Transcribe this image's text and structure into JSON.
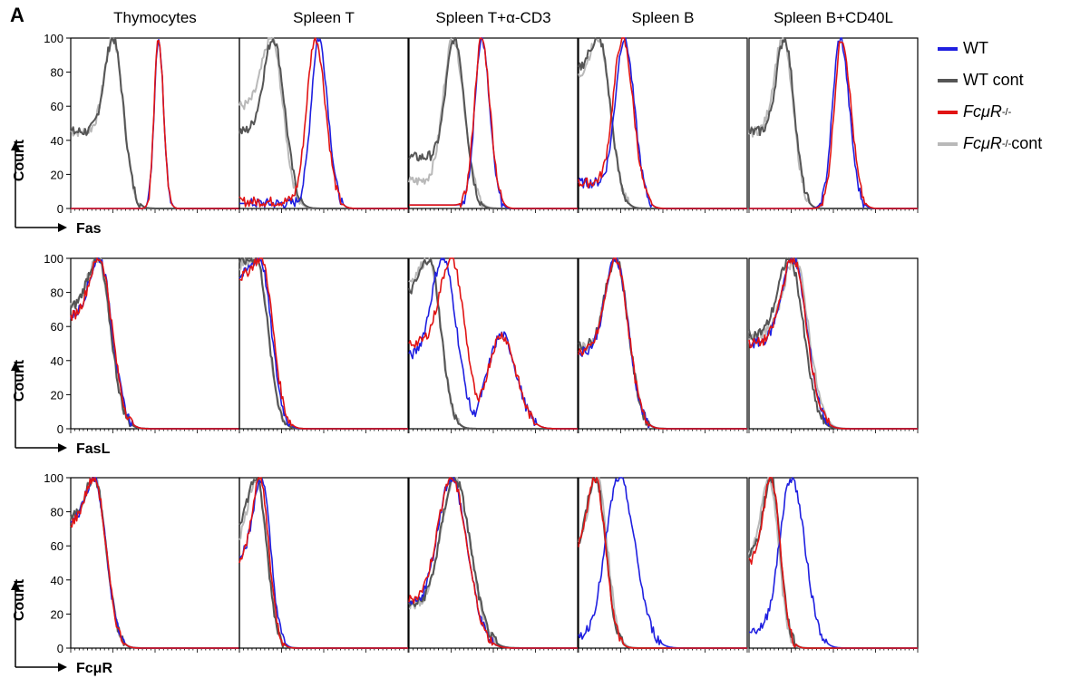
{
  "figure": {
    "panel_letter": "A",
    "columns": [
      "Thymocytes",
      "Spleen T",
      "Spleen T+α-CD3",
      "Spleen B",
      "Spleen B+CD40L"
    ],
    "y_label": "Count",
    "y_ticks": [
      "0",
      "20",
      "40",
      "60",
      "80",
      "100"
    ],
    "legend": [
      {
        "label": "WT",
        "sup": "",
        "italic": false,
        "color": "#1f1fe0"
      },
      {
        "label": "WT cont",
        "sup": "",
        "italic": false,
        "color": "#555555"
      },
      {
        "label": "FcμR",
        "sup": "-/-",
        "italic": true,
        "color": "#e11414"
      },
      {
        "label": "FcμR",
        "sup": "-/-",
        "italic": true,
        "suffix": " cont",
        "color": "#b9b9b9"
      }
    ],
    "colors": {
      "WT": "#1f1fe0",
      "WT cont": "#555555",
      "FcuR-/-": "#e11414",
      "FcuR-/- cont": "#b9b9b9"
    }
  },
  "chart_data": [
    {
      "type": "line",
      "row_label": "Fas",
      "ylabel": "Count",
      "ylim": [
        0,
        100
      ],
      "xlim": [
        0,
        1
      ],
      "histograms": [
        {
          "column": "Thymocytes",
          "series": [
            {
              "name": "WT",
              "peak": 0.52,
              "width": 0.045,
              "left_floor": 0,
              "shoulder": 0
            },
            {
              "name": "WT cont",
              "peak": 0.25,
              "width": 0.09,
              "left_floor": 45,
              "shoulder": 0
            },
            {
              "name": "FcuR-/-",
              "peak": 0.52,
              "width": 0.045,
              "left_floor": 0,
              "shoulder": 0
            },
            {
              "name": "FcuR-/- cont",
              "peak": 0.25,
              "width": 0.09,
              "left_floor": 45,
              "shoulder": 0
            }
          ]
        },
        {
          "column": "Spleen T",
          "series": [
            {
              "name": "WT",
              "peak": 0.47,
              "width": 0.08,
              "left_floor": 3,
              "shoulder": 0
            },
            {
              "name": "WT cont",
              "peak": 0.2,
              "width": 0.1,
              "left_floor": 45,
              "shoulder": 0
            },
            {
              "name": "FcuR-/-",
              "peak": 0.45,
              "width": 0.09,
              "left_floor": 4,
              "shoulder": 0
            },
            {
              "name": "FcuR-/- cont",
              "peak": 0.19,
              "width": 0.1,
              "left_floor": 60,
              "shoulder": 0
            }
          ]
        },
        {
          "column": "Spleen T+α-CD3",
          "series": [
            {
              "name": "WT",
              "peak": 0.43,
              "width": 0.07,
              "left_floor": 2,
              "shoulder": 0
            },
            {
              "name": "WT cont",
              "peak": 0.27,
              "width": 0.09,
              "left_floor": 30,
              "shoulder": 0
            },
            {
              "name": "FcuR-/-",
              "peak": 0.43,
              "width": 0.075,
              "left_floor": 2,
              "shoulder": 0
            },
            {
              "name": "FcuR-/- cont",
              "peak": 0.26,
              "width": 0.1,
              "left_floor": 16,
              "shoulder": 0
            }
          ]
        },
        {
          "column": "Spleen B",
          "series": [
            {
              "name": "WT",
              "peak": 0.27,
              "width": 0.09,
              "left_floor": 15,
              "shoulder": 0
            },
            {
              "name": "WT cont",
              "peak": 0.12,
              "width": 0.1,
              "left_floor": 80,
              "shoulder": 0
            },
            {
              "name": "FcuR-/-",
              "peak": 0.26,
              "width": 0.095,
              "left_floor": 15,
              "shoulder": 0
            },
            {
              "name": "FcuR-/- cont",
              "peak": 0.12,
              "width": 0.1,
              "left_floor": 75,
              "shoulder": 0
            }
          ]
        },
        {
          "column": "Spleen B+CD40L",
          "series": [
            {
              "name": "WT",
              "peak": 0.54,
              "width": 0.08,
              "left_floor": 0,
              "shoulder": 0
            },
            {
              "name": "WT cont",
              "peak": 0.21,
              "width": 0.085,
              "left_floor": 45,
              "shoulder": 0
            },
            {
              "name": "FcuR-/-",
              "peak": 0.55,
              "width": 0.08,
              "left_floor": 0,
              "shoulder": 0
            },
            {
              "name": "FcuR-/- cont",
              "peak": 0.2,
              "width": 0.09,
              "left_floor": 45,
              "shoulder": 0
            }
          ]
        }
      ]
    },
    {
      "type": "line",
      "row_label": "FasL",
      "ylabel": "Count",
      "ylim": [
        0,
        100
      ],
      "xlim": [
        0,
        1
      ],
      "histograms": [
        {
          "column": "Thymocytes",
          "series": [
            {
              "name": "WT",
              "peak": 0.17,
              "width": 0.11,
              "left_floor": 65,
              "shoulder": 0
            },
            {
              "name": "WT cont",
              "peak": 0.16,
              "width": 0.11,
              "left_floor": 70,
              "shoulder": 0
            },
            {
              "name": "FcuR-/-",
              "peak": 0.17,
              "width": 0.11,
              "left_floor": 65,
              "shoulder": 0
            },
            {
              "name": "FcuR-/- cont",
              "peak": 0.16,
              "width": 0.11,
              "left_floor": 70,
              "shoulder": 0
            }
          ]
        },
        {
          "column": "Spleen T",
          "series": [
            {
              "name": "WT",
              "peak": 0.12,
              "width": 0.1,
              "left_floor": 88,
              "shoulder": 0
            },
            {
              "name": "WT cont",
              "peak": 0.1,
              "width": 0.1,
              "left_floor": 97,
              "shoulder": 0
            },
            {
              "name": "FcuR-/-",
              "peak": 0.13,
              "width": 0.1,
              "left_floor": 88,
              "shoulder": 0
            },
            {
              "name": "FcuR-/- cont",
              "peak": 0.1,
              "width": 0.1,
              "left_floor": 95,
              "shoulder": 0
            }
          ]
        },
        {
          "column": "Spleen T+α-CD3",
          "series": [
            {
              "name": "WT",
              "peak": 0.2,
              "width": 0.12,
              "left_floor": 42,
              "shoulder": 0.55
            },
            {
              "name": "WT cont",
              "peak": 0.12,
              "width": 0.1,
              "left_floor": 78,
              "shoulder": 0
            },
            {
              "name": "FcuR-/-",
              "peak": 0.25,
              "width": 0.12,
              "left_floor": 50,
              "shoulder": 0.55
            },
            {
              "name": "FcuR-/- cont",
              "peak": 0.12,
              "width": 0.1,
              "left_floor": 85,
              "shoulder": 0
            }
          ]
        },
        {
          "column": "Spleen B",
          "series": [
            {
              "name": "WT",
              "peak": 0.22,
              "width": 0.11,
              "left_floor": 45,
              "shoulder": 0
            },
            {
              "name": "WT cont",
              "peak": 0.22,
              "width": 0.11,
              "left_floor": 48,
              "shoulder": 0
            },
            {
              "name": "FcuR-/-",
              "peak": 0.22,
              "width": 0.11,
              "left_floor": 45,
              "shoulder": 0
            },
            {
              "name": "FcuR-/- cont",
              "peak": 0.22,
              "width": 0.11,
              "left_floor": 48,
              "shoulder": 0
            }
          ]
        },
        {
          "column": "Spleen B+CD40L",
          "series": [
            {
              "name": "WT",
              "peak": 0.26,
              "width": 0.12,
              "left_floor": 50,
              "shoulder": 0
            },
            {
              "name": "WT cont",
              "peak": 0.24,
              "width": 0.12,
              "left_floor": 55,
              "shoulder": 0
            },
            {
              "name": "FcuR-/-",
              "peak": 0.26,
              "width": 0.12,
              "left_floor": 50,
              "shoulder": 0
            },
            {
              "name": "FcuR-/- cont",
              "peak": 0.27,
              "width": 0.12,
              "left_floor": 55,
              "shoulder": 0
            }
          ]
        }
      ]
    },
    {
      "type": "line",
      "row_label": "FcμR",
      "ylabel": "Count",
      "ylim": [
        0,
        100
      ],
      "xlim": [
        0,
        1
      ],
      "histograms": [
        {
          "column": "Thymocytes",
          "series": [
            {
              "name": "WT",
              "peak": 0.14,
              "width": 0.1,
              "left_floor": 72,
              "shoulder": 0
            },
            {
              "name": "WT cont",
              "peak": 0.14,
              "width": 0.1,
              "left_floor": 75,
              "shoulder": 0
            },
            {
              "name": "FcuR-/-",
              "peak": 0.14,
              "width": 0.1,
              "left_floor": 72,
              "shoulder": 0
            },
            {
              "name": "FcuR-/- cont",
              "peak": 0.14,
              "width": 0.1,
              "left_floor": 75,
              "shoulder": 0
            }
          ]
        },
        {
          "column": "Spleen T",
          "series": [
            {
              "name": "WT",
              "peak": 0.13,
              "width": 0.08,
              "left_floor": 55,
              "shoulder": 0
            },
            {
              "name": "WT cont",
              "peak": 0.1,
              "width": 0.09,
              "left_floor": 70,
              "shoulder": 0
            },
            {
              "name": "FcuR-/-",
              "peak": 0.12,
              "width": 0.08,
              "left_floor": 50,
              "shoulder": 0
            },
            {
              "name": "FcuR-/- cont",
              "peak": 0.1,
              "width": 0.09,
              "left_floor": 60,
              "shoulder": 0
            }
          ]
        },
        {
          "column": "Spleen T+α-CD3",
          "series": [
            {
              "name": "WT",
              "peak": 0.25,
              "width": 0.14,
              "left_floor": 25,
              "shoulder": 0
            },
            {
              "name": "WT cont",
              "peak": 0.27,
              "width": 0.14,
              "left_floor": 25,
              "shoulder": 0
            },
            {
              "name": "FcuR-/-",
              "peak": 0.25,
              "width": 0.14,
              "left_floor": 28,
              "shoulder": 0
            },
            {
              "name": "FcuR-/- cont",
              "peak": 0.27,
              "width": 0.14,
              "left_floor": 25,
              "shoulder": 0
            }
          ]
        },
        {
          "column": "Spleen B",
          "series": [
            {
              "name": "WT",
              "peak": 0.24,
              "width": 0.14,
              "left_floor": 6,
              "shoulder": 0
            },
            {
              "name": "WT cont",
              "peak": 0.1,
              "width": 0.09,
              "left_floor": 55,
              "shoulder": 0
            },
            {
              "name": "FcuR-/-",
              "peak": 0.1,
              "width": 0.09,
              "left_floor": 55,
              "shoulder": 0
            },
            {
              "name": "FcuR-/- cont",
              "peak": 0.11,
              "width": 0.09,
              "left_floor": 60,
              "shoulder": 0
            }
          ]
        },
        {
          "column": "Spleen B+CD40L",
          "series": [
            {
              "name": "WT",
              "peak": 0.25,
              "width": 0.12,
              "left_floor": 10,
              "shoulder": 0
            },
            {
              "name": "WT cont",
              "peak": 0.13,
              "width": 0.08,
              "left_floor": 55,
              "shoulder": 0
            },
            {
              "name": "FcuR-/-",
              "peak": 0.13,
              "width": 0.08,
              "left_floor": 50,
              "shoulder": 0
            },
            {
              "name": "FcuR-/- cont",
              "peak": 0.12,
              "width": 0.08,
              "left_floor": 55,
              "shoulder": 0
            }
          ]
        }
      ]
    }
  ]
}
